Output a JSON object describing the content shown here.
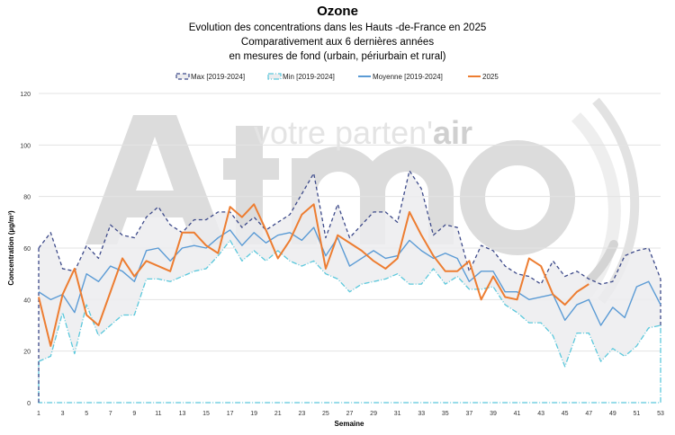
{
  "logo": {
    "text_big": "Atmo",
    "tagline_a": "votre parten'",
    "tagline_b": "air"
  },
  "colors": {
    "max": "#3d4a8a",
    "min": "#5bc8dc",
    "moyenne": "#5b9bd5",
    "y2025": "#ed7d31",
    "band": "#ececee",
    "grid": "#e3e3e3"
  },
  "chart_data": {
    "type": "line",
    "title": "Ozone",
    "subtitles": [
      "Evolution des concentrations dans les Hauts -de-France en 2025",
      "Comparativement aux 6 dernières années",
      "en mesures de fond (urbain, périurbain et rural)"
    ],
    "xlabel": "Semaine",
    "ylabel": "Concentration (µg/m³)",
    "ylim": [
      0,
      120
    ],
    "xlim": [
      1,
      53
    ],
    "yticks": [
      0,
      20,
      40,
      60,
      80,
      100,
      120
    ],
    "xticks": [
      1,
      3,
      5,
      7,
      9,
      11,
      13,
      15,
      17,
      19,
      21,
      23,
      25,
      27,
      29,
      31,
      33,
      35,
      37,
      39,
      41,
      43,
      45,
      47,
      49,
      51,
      53
    ],
    "grid": true,
    "legend": "top",
    "series": [
      {
        "name": "Max [2019-2024]",
        "style": "dashed",
        "values": [
          60,
          66,
          52,
          51,
          61,
          56,
          69,
          65,
          64,
          72,
          76,
          69,
          66,
          71,
          71,
          74,
          74,
          68,
          72,
          67,
          70,
          73,
          81,
          89,
          64,
          77,
          64,
          69,
          74,
          74,
          70,
          90,
          83,
          65,
          69,
          68,
          51,
          61,
          59,
          53,
          50,
          49,
          46,
          55,
          49,
          51,
          48,
          46,
          47,
          57,
          59,
          60,
          48
        ]
      },
      {
        "name": "Min [2019-2024]",
        "style": "dash-dot",
        "values": [
          16,
          18,
          35,
          19,
          38,
          26,
          30,
          34,
          34,
          48,
          48,
          47,
          49,
          51,
          52,
          57,
          63,
          55,
          59,
          55,
          59,
          55,
          53,
          55,
          50,
          48,
          43,
          46,
          47,
          48,
          50,
          46,
          46,
          52,
          46,
          49,
          44,
          44,
          45,
          38,
          35,
          31,
          31,
          26,
          14,
          27,
          27,
          16,
          21,
          18,
          22,
          29,
          30
        ]
      },
      {
        "name": "Moyenne [2019-2024]",
        "style": "solid",
        "values": [
          43,
          40,
          42,
          35,
          50,
          47,
          53,
          51,
          47,
          59,
          60,
          55,
          60,
          61,
          60,
          64,
          67,
          61,
          66,
          62,
          65,
          66,
          63,
          68,
          57,
          64,
          53,
          56,
          59,
          56,
          57,
          63,
          59,
          56,
          58,
          56,
          47,
          51,
          51,
          43,
          43,
          40,
          41,
          42,
          32,
          38,
          40,
          30,
          37,
          33,
          45,
          47,
          38
        ]
      },
      {
        "name": "2025",
        "style": "solid",
        "values": [
          41,
          22,
          42,
          52,
          34,
          30,
          43,
          56,
          49,
          55,
          53,
          51,
          66,
          66,
          61,
          58,
          76,
          72,
          77,
          67,
          56,
          63,
          73,
          77,
          52,
          65,
          62,
          59,
          55,
          52,
          56,
          74,
          65,
          57,
          51,
          51,
          55,
          40,
          49,
          41,
          40,
          56,
          53,
          42,
          38,
          43,
          46
        ]
      }
    ]
  }
}
